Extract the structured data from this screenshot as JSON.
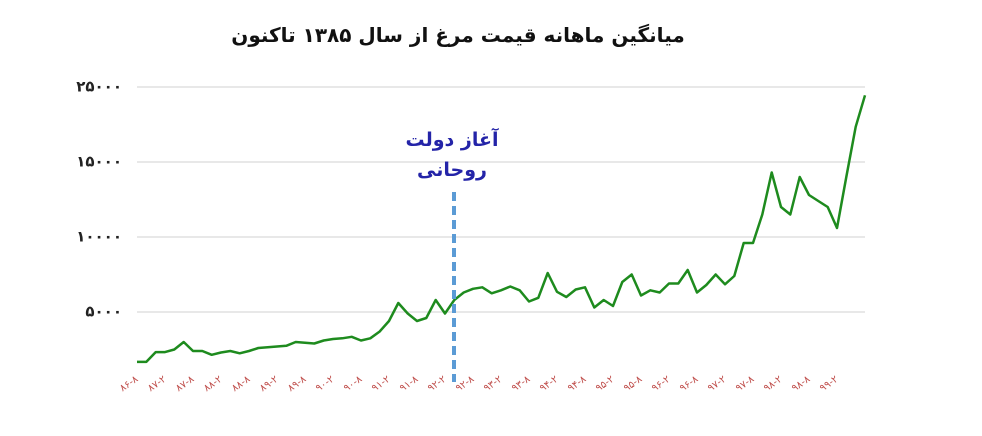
{
  "chart_data": {
    "type": "line",
    "title": "میانگین ماهانه قیمت مرغ از سال ۱۳۸۵ تاکنون",
    "annotation": [
      "آغاز دولت",
      "روحانی"
    ],
    "categories": [
      "۸۶-۸",
      null,
      null,
      "۸۷-۲",
      null,
      null,
      "۸۷-۸",
      null,
      null,
      "۸۸-۲",
      null,
      null,
      "۸۸-۸",
      null,
      null,
      "۸۹-۲",
      null,
      null,
      "۸۹-۸",
      null,
      null,
      "۹۰-۲",
      null,
      null,
      "۹۰-۸",
      null,
      null,
      "۹۱-۲",
      null,
      null,
      "۹۱-۸",
      null,
      null,
      "۹۲-۲",
      null,
      null,
      "۹۲-۸",
      null,
      null,
      "۹۳-۲",
      null,
      null,
      "۹۳-۸",
      null,
      null,
      "۹۴-۲",
      null,
      null,
      "۹۴-۸",
      null,
      null,
      "۹۵-۲",
      null,
      null,
      "۹۵-۸",
      null,
      null,
      "۹۶-۲",
      null,
      null,
      "۹۶-۸",
      null,
      null,
      "۹۷-۲",
      null,
      null,
      "۹۷-۸",
      null,
      null,
      "۹۸-۲",
      null,
      null,
      "۹۸-۸",
      null,
      null,
      "۹۹-۲",
      null,
      null,
      null
    ],
    "series": [
      {
        "color": "#1e8b1e",
        "values": [
          1670,
          1670,
          2330,
          2330,
          2500,
          3000,
          2400,
          2400,
          2150,
          2300,
          2400,
          2250,
          2400,
          2600,
          2650,
          2700,
          2750,
          3000,
          2950,
          2900,
          3100,
          3200,
          3250,
          3350,
          3100,
          3250,
          3700,
          4400,
          5600,
          4900,
          4400,
          4600,
          5800,
          4900,
          5800,
          6300,
          6550,
          6650,
          6250,
          6450,
          6700,
          6450,
          5700,
          5950,
          7600,
          6350,
          6000,
          6500,
          6650,
          5300,
          5800,
          5400,
          7000,
          7500,
          6100,
          6450,
          6300,
          6900,
          6900,
          7800,
          6300,
          6800,
          7500,
          6850,
          7400,
          9600,
          9600,
          11500,
          14300,
          12000,
          11500,
          14000,
          12800,
          12400,
          12000,
          10600,
          14000,
          19700,
          23900
        ]
      }
    ],
    "ylim": [
      0,
      25000
    ],
    "yticks": [
      {
        "value": 5000,
        "label": "۵۰۰۰"
      },
      {
        "value": 10000,
        "label": "۱۰۰۰۰"
      },
      {
        "value": 15000,
        "label": "۱۵۰۰۰"
      },
      {
        "value": 25000,
        "label": "۲۵۰۰۰"
      }
    ],
    "grid": true
  }
}
